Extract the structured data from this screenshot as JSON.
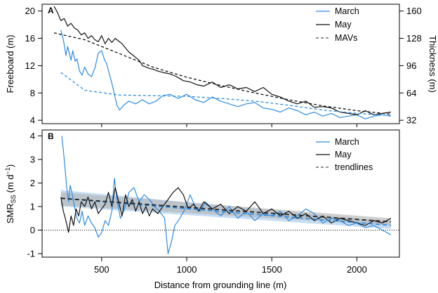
{
  "colors": {
    "march": "#2f8ce0",
    "may": "#111111",
    "mav": "#555555",
    "band_march": "#a9cbec",
    "band_may": "#b5b5b5"
  },
  "chart_data": [
    {
      "panel": "A",
      "type": "line",
      "xlabel": "",
      "ylabel": "Freeboard (m)",
      "ylabel_right": "Thickness (m)",
      "xlim": [
        150,
        2250
      ],
      "ylim": [
        3.5,
        21
      ],
      "yticks": [
        4,
        8,
        12,
        16,
        20
      ],
      "ytick_labels": [
        "4",
        "8",
        "12",
        "16",
        "20"
      ],
      "yticks_right": [
        32,
        64,
        96,
        128,
        160
      ],
      "ytick_labels_right": [
        "32",
        "64",
        "96",
        "128",
        "160"
      ],
      "right_axis_scale": "thickness = 8 × freeboard",
      "legend": {
        "position": "top-right",
        "entries": [
          "March",
          "May",
          "MAVs"
        ]
      },
      "series": [
        {
          "name": "March",
          "style": "solid",
          "x": [
            260,
            275,
            290,
            300,
            320,
            330,
            345,
            355,
            370,
            385,
            400,
            420,
            440,
            460,
            480,
            500,
            515,
            530,
            545,
            560,
            575,
            590,
            605,
            630,
            660,
            700,
            740,
            780,
            820,
            860,
            900,
            950,
            1000,
            1050,
            1100,
            1150,
            1200,
            1250,
            1300,
            1350,
            1400,
            1450,
            1500,
            1550,
            1600,
            1650,
            1700,
            1750,
            1800,
            1850,
            1900,
            1950,
            2000,
            2050,
            2100,
            2150,
            2200
          ],
          "y": [
            17.2,
            15.8,
            13.5,
            14.8,
            12.8,
            14.2,
            12.6,
            13.0,
            11.2,
            10.6,
            11.8,
            10.8,
            10.4,
            11.6,
            13.8,
            14.2,
            13.0,
            12.2,
            10.8,
            9.4,
            7.8,
            6.2,
            5.5,
            6.2,
            6.8,
            6.4,
            7.0,
            6.4,
            6.8,
            7.6,
            7.8,
            7.2,
            7.8,
            7.0,
            6.6,
            7.4,
            6.8,
            6.4,
            6.0,
            6.4,
            6.6,
            5.8,
            5.6,
            5.2,
            5.8,
            5.4,
            4.8,
            5.2,
            4.6,
            5.0,
            4.4,
            4.6,
            4.8,
            4.2,
            4.6,
            4.8,
            4.6
          ]
        },
        {
          "name": "May",
          "style": "solid",
          "x": [
            220,
            240,
            260,
            280,
            300,
            320,
            340,
            360,
            380,
            400,
            420,
            440,
            460,
            480,
            500,
            520,
            540,
            560,
            580,
            600,
            620,
            640,
            660,
            680,
            700,
            720,
            740,
            760,
            780,
            800,
            830,
            860,
            900,
            940,
            980,
            1020,
            1060,
            1100,
            1150,
            1200,
            1250,
            1300,
            1350,
            1400,
            1450,
            1500,
            1550,
            1600,
            1650,
            1700,
            1750,
            1800,
            1850,
            1900,
            1950,
            2000,
            2050,
            2100,
            2150,
            2200
          ],
          "y": [
            20.7,
            19.8,
            18.6,
            18.9,
            17.8,
            18.2,
            17.5,
            17.2,
            16.5,
            16.8,
            16.0,
            16.4,
            15.8,
            15.5,
            16.4,
            15.2,
            16.0,
            15.4,
            16.0,
            15.6,
            15.2,
            14.6,
            14.0,
            13.6,
            13.2,
            12.8,
            12.0,
            11.8,
            11.6,
            11.5,
            11.2,
            11.0,
            10.8,
            10.4,
            9.8,
            9.6,
            9.2,
            9.0,
            9.6,
            8.8,
            9.2,
            8.6,
            8.8,
            8.2,
            8.8,
            7.8,
            7.4,
            6.8,
            6.4,
            6.8,
            5.9,
            6.0,
            5.8,
            5.2,
            5.0,
            4.8,
            5.4,
            4.8,
            5.0,
            5.2
          ]
        },
        {
          "name": "MAV March",
          "style": "dashed",
          "x": [
            260,
            400,
            600,
            800,
            1000,
            1200,
            1400,
            1600,
            1800,
            2000,
            2200
          ],
          "y": [
            11.0,
            8.4,
            7.7,
            7.6,
            7.5,
            7.2,
            6.8,
            6.2,
            5.5,
            5.0,
            4.7
          ]
        },
        {
          "name": "MAV May",
          "style": "dashed",
          "x": [
            220,
            400,
            600,
            800,
            1000,
            1200,
            1400,
            1600,
            1800,
            2000,
            2200
          ],
          "y": [
            16.8,
            15.8,
            13.8,
            11.8,
            10.3,
            9.1,
            8.0,
            7.0,
            6.1,
            5.4,
            4.9
          ]
        }
      ]
    },
    {
      "panel": "B",
      "type": "line",
      "xlabel": "Distance from grounding line (m)",
      "ylabel": "SMR",
      "ylabel_sub": "SS",
      "ylabel_units": "(m d",
      "ylabel_exp": "−1",
      "ylabel_close": ")",
      "xlim": [
        150,
        2250
      ],
      "ylim": [
        -1.15,
        4.25
      ],
      "xticks": [
        500,
        1000,
        1500,
        2000
      ],
      "xtick_labels": [
        "500",
        "1000",
        "1500",
        "2000"
      ],
      "yticks": [
        -1,
        0,
        1,
        2,
        3,
        4
      ],
      "ytick_labels": [
        "-1",
        "0",
        "1",
        "2",
        "3",
        "4"
      ],
      "reference_line": 0,
      "legend": {
        "position": "top-right",
        "entries": [
          "March",
          "May",
          "trendlines"
        ]
      },
      "series": [
        {
          "name": "March",
          "style": "solid",
          "x": [
            265,
            275,
            285,
            295,
            305,
            315,
            325,
            340,
            355,
            370,
            385,
            400,
            420,
            440,
            460,
            480,
            500,
            520,
            540,
            560,
            575,
            590,
            610,
            630,
            660,
            690,
            720,
            750,
            780,
            810,
            840,
            870,
            890,
            910,
            930,
            960,
            990,
            1020,
            1050,
            1080,
            1110,
            1150,
            1200,
            1250,
            1300,
            1350,
            1400,
            1450,
            1500,
            1550,
            1600,
            1650,
            1700,
            1750,
            1800,
            1850,
            1900,
            1950,
            2000,
            2050,
            2100,
            2150,
            2200
          ],
          "y": [
            4.0,
            3.4,
            2.6,
            1.8,
            1.2,
            1.9,
            1.6,
            1.0,
            0.5,
            0.3,
            0.8,
            0.2,
            0.6,
            0.3,
            0.1,
            -0.3,
            -0.1,
            0.4,
            0.2,
            0.8,
            2.2,
            1.3,
            0.5,
            0.8,
            1.6,
            1.8,
            1.2,
            1.5,
            1.3,
            1.0,
            0.8,
            0.5,
            -1.0,
            -0.5,
            0.2,
            0.5,
            0.9,
            1.5,
            1.0,
            0.8,
            1.2,
            0.9,
            0.6,
            1.0,
            0.5,
            0.8,
            0.4,
            0.7,
            0.6,
            0.8,
            0.4,
            0.6,
            0.9,
            0.7,
            0.3,
            0.5,
            0.4,
            0.2,
            0.3,
            0.1,
            0.2,
            0.0,
            -0.2
          ]
        },
        {
          "name": "May",
          "style": "solid",
          "x": [
            260,
            275,
            290,
            305,
            320,
            335,
            350,
            365,
            380,
            400,
            420,
            440,
            460,
            480,
            500,
            520,
            540,
            560,
            580,
            600,
            620,
            640,
            660,
            680,
            700,
            720,
            740,
            760,
            780,
            800,
            830,
            860,
            890,
            920,
            950,
            980,
            1010,
            1040,
            1070,
            1100,
            1150,
            1200,
            1250,
            1300,
            1350,
            1400,
            1450,
            1500,
            1550,
            1600,
            1650,
            1700,
            1750,
            1800,
            1850,
            1900,
            1950,
            2000,
            2050,
            2100,
            2150,
            2200
          ],
          "y": [
            1.4,
            0.8,
            0.4,
            -0.1,
            0.6,
            0.2,
            0.9,
            0.6,
            1.2,
            1.0,
            1.4,
            0.9,
            1.2,
            0.7,
            0.9,
            1.1,
            1.6,
            1.0,
            1.8,
            1.2,
            0.6,
            1.5,
            1.0,
            1.3,
            0.8,
            1.2,
            0.7,
            1.0,
            0.6,
            0.9,
            0.7,
            1.0,
            1.3,
            1.6,
            1.8,
            1.5,
            0.9,
            1.1,
            0.8,
            1.2,
            0.9,
            1.1,
            0.7,
            1.0,
            0.8,
            1.2,
            0.7,
            0.9,
            0.6,
            0.8,
            0.5,
            0.7,
            0.4,
            0.6,
            0.3,
            0.5,
            0.4,
            0.3,
            0.2,
            0.4,
            0.3,
            0.5
          ]
        },
        {
          "name": "trend March",
          "style": "dashed",
          "x": [
            260,
            2200
          ],
          "y": [
            1.35,
            0.2
          ],
          "band_low": [
            1.0,
            0.05
          ],
          "band_high": [
            1.7,
            0.35
          ]
        },
        {
          "name": "trend May",
          "style": "dashed",
          "x": [
            260,
            2200
          ],
          "y": [
            1.35,
            0.35
          ],
          "band_low": [
            1.05,
            0.2
          ],
          "band_high": [
            1.6,
            0.5
          ]
        }
      ]
    }
  ]
}
